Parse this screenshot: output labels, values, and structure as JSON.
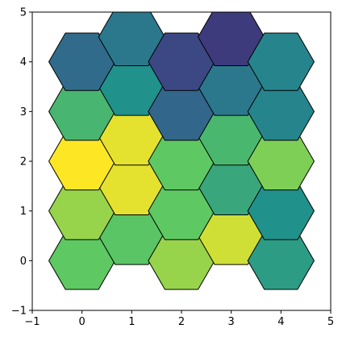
{
  "chart_data": {
    "type": "heatmap",
    "title": "",
    "xlabel": "",
    "ylabel": "",
    "xlim": [
      -1,
      5
    ],
    "ylim": [
      -1,
      5
    ],
    "xticks": [
      -1,
      0,
      1,
      2,
      3,
      4,
      5
    ],
    "yticks": [
      -1,
      0,
      1,
      2,
      3,
      4,
      5
    ],
    "xtick_labels": [
      "−1",
      "0",
      "1",
      "2",
      "3",
      "4",
      "5"
    ],
    "ytick_labels": [
      "−1",
      "0",
      "1",
      "2",
      "3",
      "4",
      "5"
    ],
    "grid": false,
    "colormap": "viridis",
    "hex_radius": 0.6667,
    "value_range": [
      0,
      1
    ],
    "cells": [
      {
        "x": 0,
        "y": 0,
        "value": 0.75
      },
      {
        "x": 1,
        "y": 0.5,
        "value": 0.73
      },
      {
        "x": 2,
        "y": 0,
        "value": 0.84
      },
      {
        "x": 3,
        "y": 0.5,
        "value": 0.93
      },
      {
        "x": 4,
        "y": 0,
        "value": 0.55
      },
      {
        "x": 0,
        "y": 1,
        "value": 0.84
      },
      {
        "x": 1,
        "y": 1.5,
        "value": 0.96
      },
      {
        "x": 2,
        "y": 1,
        "value": 0.75
      },
      {
        "x": 3,
        "y": 1.5,
        "value": 0.6
      },
      {
        "x": 4,
        "y": 1,
        "value": 0.5
      },
      {
        "x": 0,
        "y": 2,
        "value": 1.0
      },
      {
        "x": 1,
        "y": 2.5,
        "value": 0.96
      },
      {
        "x": 2,
        "y": 2,
        "value": 0.75
      },
      {
        "x": 3,
        "y": 2.5,
        "value": 0.67
      },
      {
        "x": 4,
        "y": 2,
        "value": 0.8
      },
      {
        "x": 0,
        "y": 3,
        "value": 0.66
      },
      {
        "x": 1,
        "y": 3.5,
        "value": 0.5
      },
      {
        "x": 2,
        "y": 3,
        "value": 0.33
      },
      {
        "x": 3,
        "y": 3.5,
        "value": 0.4
      },
      {
        "x": 4,
        "y": 3,
        "value": 0.45
      },
      {
        "x": 0,
        "y": 4,
        "value": 0.35
      },
      {
        "x": 1,
        "y": 4.5,
        "value": 0.4
      },
      {
        "x": 2,
        "y": 4,
        "value": 0.22
      },
      {
        "x": 3,
        "y": 4.5,
        "value": 0.18
      },
      {
        "x": 4,
        "y": 4,
        "value": 0.45
      }
    ]
  }
}
